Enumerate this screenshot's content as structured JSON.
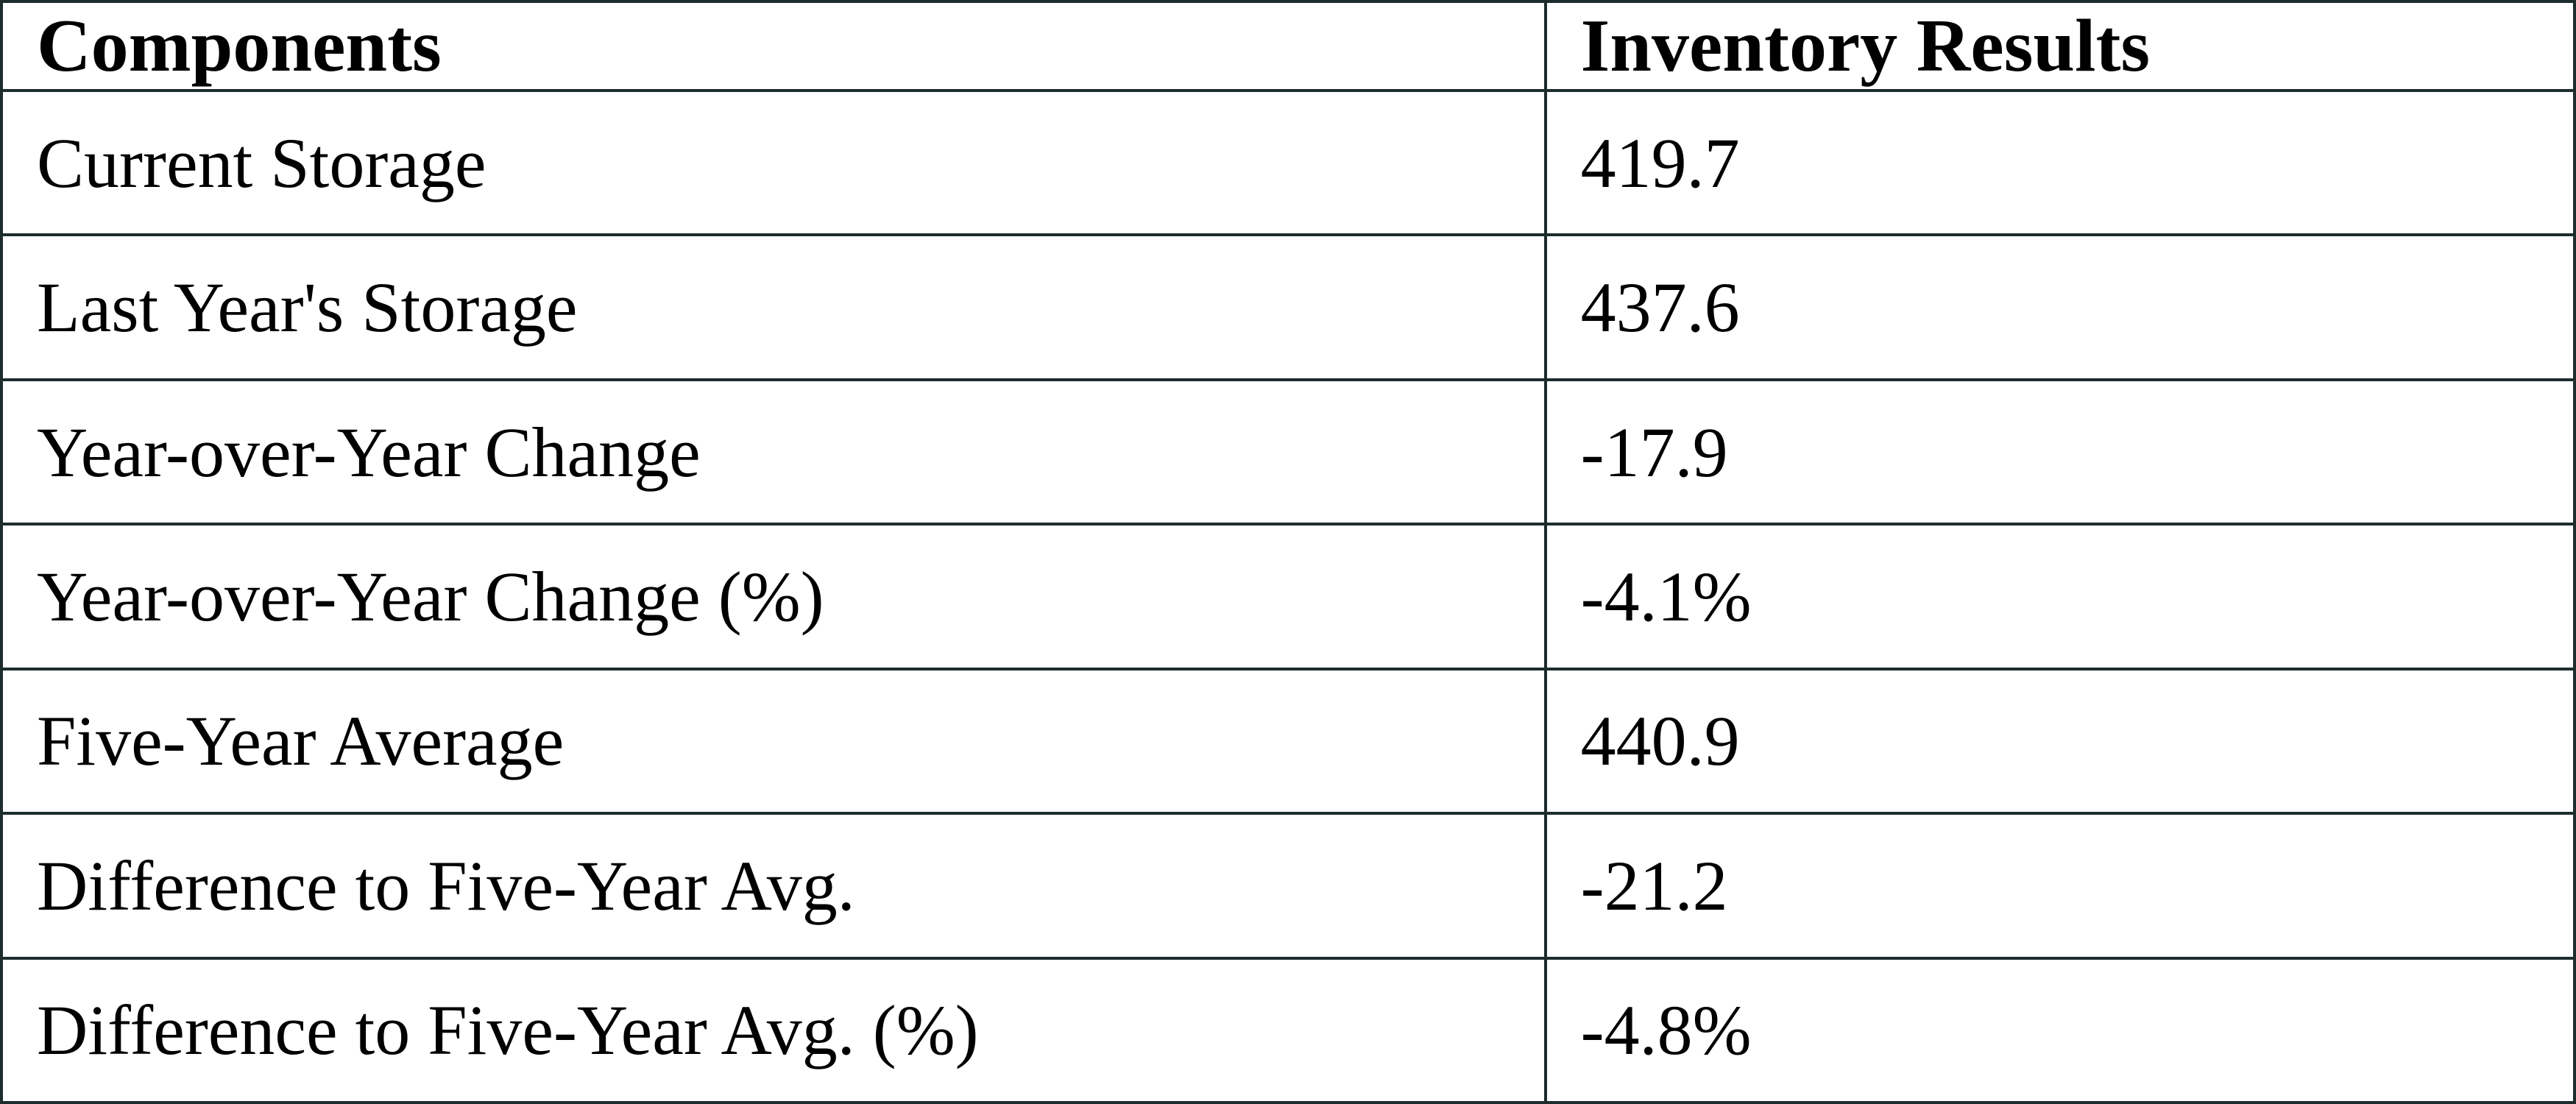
{
  "table": {
    "columns": [
      "Components",
      "Inventory Results"
    ],
    "rows": [
      {
        "component": "Current Storage",
        "value": "419.7"
      },
      {
        "component": "Last Year's Storage",
        "value": "437.6"
      },
      {
        "component": "Year-over-Year Change",
        "value": "-17.9"
      },
      {
        "component": "Year-over-Year Change (%)",
        "value": "-4.1%"
      },
      {
        "component": "Five-Year Average",
        "value": "440.9"
      },
      {
        "component": "Difference to Five-Year Avg.",
        "value": "-21.2"
      },
      {
        "component": "Difference to Five-Year Avg. (%)",
        "value": "-4.8%"
      }
    ]
  },
  "chart_data": {
    "type": "table",
    "title": "",
    "columns": [
      "Components",
      "Inventory Results"
    ],
    "rows": [
      [
        "Current Storage",
        419.7
      ],
      [
        "Last Year's Storage",
        437.6
      ],
      [
        "Year-over-Year Change",
        -17.9
      ],
      [
        "Year-over-Year Change (%)",
        "-4.1%"
      ],
      [
        "Five-Year Average",
        440.9
      ],
      [
        "Difference to Five-Year Avg.",
        -21.2
      ],
      [
        "Difference to Five-Year Avg. (%)",
        "-4.8%"
      ]
    ]
  },
  "colors": {
    "border": "#1d2c2c",
    "text": "#000000",
    "background": "#ffffff"
  }
}
